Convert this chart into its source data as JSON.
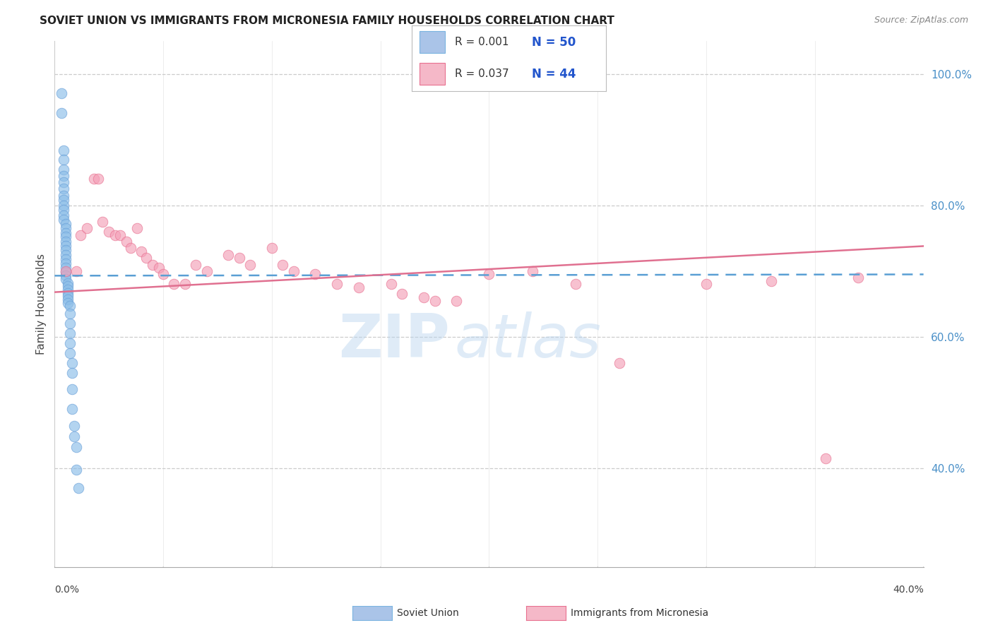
{
  "title": "SOVIET UNION VS IMMIGRANTS FROM MICRONESIA FAMILY HOUSEHOLDS CORRELATION CHART",
  "source": "Source: ZipAtlas.com",
  "ylabel": "Family Households",
  "right_yticks": [
    "40.0%",
    "60.0%",
    "80.0%",
    "100.0%"
  ],
  "right_ytick_vals": [
    0.4,
    0.6,
    0.8,
    1.0
  ],
  "xlim": [
    0.0,
    0.4
  ],
  "ylim": [
    0.25,
    1.05
  ],
  "legend1_color": "#aac4e8",
  "legend2_color": "#f5b8c8",
  "watermark_zip": "ZIP",
  "watermark_atlas": "atlas",
  "soviet_union_x": [
    0.003,
    0.003,
    0.004,
    0.004,
    0.004,
    0.004,
    0.004,
    0.004,
    0.004,
    0.004,
    0.004,
    0.004,
    0.004,
    0.004,
    0.005,
    0.005,
    0.005,
    0.005,
    0.005,
    0.005,
    0.005,
    0.005,
    0.005,
    0.005,
    0.005,
    0.005,
    0.005,
    0.005,
    0.006,
    0.006,
    0.006,
    0.006,
    0.006,
    0.006,
    0.006,
    0.007,
    0.007,
    0.007,
    0.007,
    0.007,
    0.007,
    0.008,
    0.008,
    0.008,
    0.008,
    0.009,
    0.009,
    0.01,
    0.01,
    0.011
  ],
  "soviet_union_y": [
    0.97,
    0.94,
    0.883,
    0.87,
    0.855,
    0.845,
    0.835,
    0.825,
    0.815,
    0.808,
    0.8,
    0.793,
    0.785,
    0.778,
    0.772,
    0.765,
    0.758,
    0.752,
    0.745,
    0.738,
    0.732,
    0.725,
    0.718,
    0.712,
    0.705,
    0.699,
    0.693,
    0.688,
    0.682,
    0.677,
    0.672,
    0.667,
    0.662,
    0.657,
    0.652,
    0.647,
    0.635,
    0.62,
    0.605,
    0.59,
    0.575,
    0.56,
    0.545,
    0.52,
    0.49,
    0.465,
    0.448,
    0.432,
    0.398,
    0.37
  ],
  "micronesia_x": [
    0.005,
    0.01,
    0.012,
    0.015,
    0.018,
    0.02,
    0.022,
    0.025,
    0.028,
    0.03,
    0.033,
    0.035,
    0.038,
    0.04,
    0.042,
    0.045,
    0.048,
    0.05,
    0.055,
    0.06,
    0.065,
    0.07,
    0.08,
    0.085,
    0.09,
    0.1,
    0.105,
    0.11,
    0.12,
    0.13,
    0.14,
    0.155,
    0.16,
    0.17,
    0.175,
    0.185,
    0.2,
    0.22,
    0.24,
    0.26,
    0.3,
    0.33,
    0.355,
    0.37
  ],
  "micronesia_y": [
    0.7,
    0.7,
    0.755,
    0.765,
    0.84,
    0.84,
    0.775,
    0.76,
    0.755,
    0.755,
    0.745,
    0.735,
    0.765,
    0.73,
    0.72,
    0.71,
    0.705,
    0.695,
    0.68,
    0.68,
    0.71,
    0.7,
    0.725,
    0.72,
    0.71,
    0.735,
    0.71,
    0.7,
    0.695,
    0.68,
    0.675,
    0.68,
    0.665,
    0.66,
    0.655,
    0.655,
    0.695,
    0.7,
    0.68,
    0.56,
    0.68,
    0.685,
    0.415,
    0.69
  ],
  "soviet_line_x": [
    0.0,
    0.4
  ],
  "soviet_line_y": [
    0.693,
    0.695
  ],
  "micro_line_x": [
    0.0,
    0.4
  ],
  "micro_line_y": [
    0.668,
    0.738
  ],
  "dot_size": 110,
  "dot_alpha": 0.65,
  "dot_color_soviet": "#8bbde8",
  "dot_color_micro": "#f4a0b8",
  "dot_edge_color_soviet": "#6aa0d8",
  "dot_edge_color_micro": "#e87090",
  "grid_color": "#cccccc",
  "bg_color": "#ffffff"
}
